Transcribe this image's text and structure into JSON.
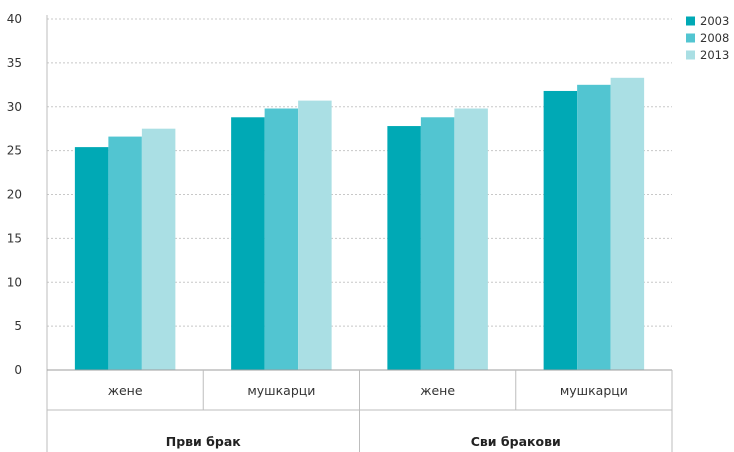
{
  "chart_data": {
    "type": "bar",
    "title": "",
    "xlabel": "",
    "ylabel": "",
    "ylim": [
      0,
      40
    ],
    "yticks": [
      "0",
      "5",
      "10",
      "15",
      "20",
      "25",
      "30",
      "35",
      "40"
    ],
    "grid": true,
    "legend_position": "top-right",
    "groups": [
      {
        "label": "Први брак",
        "categories": [
          "жене",
          "мушкарци"
        ]
      },
      {
        "label": "Сви бракови",
        "categories": [
          "жене",
          "мушкарци"
        ]
      }
    ],
    "series": [
      {
        "name": "2003",
        "color": "#00a9b5",
        "values": [
          25.4,
          28.8,
          27.8,
          31.8
        ]
      },
      {
        "name": "2008",
        "color": "#52c5d1",
        "values": [
          26.6,
          29.8,
          28.8,
          32.5
        ]
      },
      {
        "name": "2013",
        "color": "#aadfe4",
        "values": [
          27.5,
          30.7,
          29.8,
          33.3
        ]
      }
    ]
  }
}
